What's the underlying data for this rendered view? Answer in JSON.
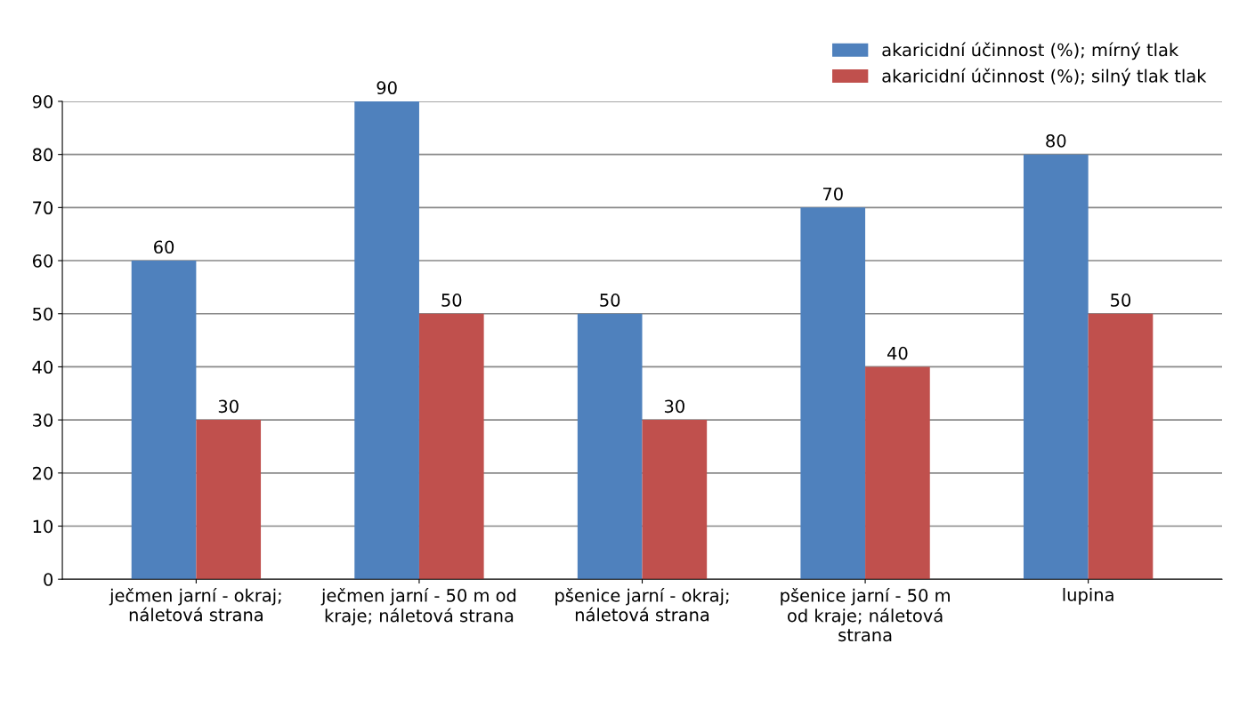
{
  "chart_data": {
    "type": "bar",
    "categories": [
      "ječmen jarní - okraj; náletová strana",
      "ječmen jarní - 50 m od kraje; náletová strana",
      "pšenice jarní - okraj; náletová strana",
      "pšenice jarní - 50 m od kraje; náletová strana",
      "lupina"
    ],
    "series": [
      {
        "name": "akaricidní účinnost (%); mírný tlak",
        "color": "#4f81bd",
        "values": [
          60,
          90,
          50,
          70,
          80
        ]
      },
      {
        "name": "akaricidní účinnost (%); silný tlak tlak",
        "color": "#c0504d",
        "values": [
          30,
          50,
          30,
          40,
          50
        ]
      }
    ],
    "ylim": [
      0,
      90
    ],
    "yticks": [
      0,
      10,
      20,
      30,
      40,
      50,
      60,
      70,
      80,
      90
    ],
    "grid": "y",
    "legend": "top right",
    "data_labels": true
  }
}
